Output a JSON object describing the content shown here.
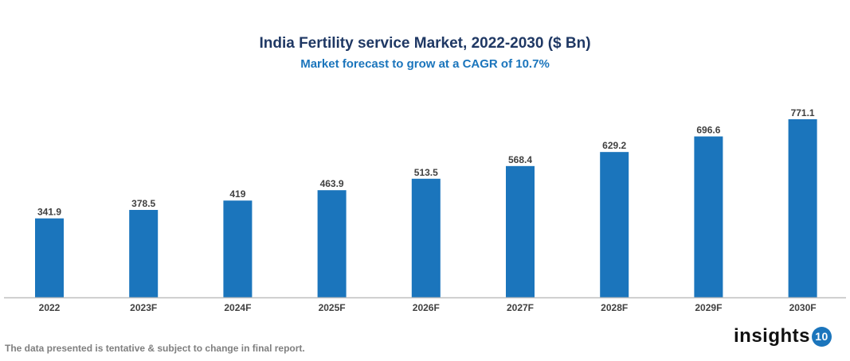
{
  "chart_data": {
    "type": "bar",
    "title": "India Fertility service Market, 2022-2030 ($ Bn)",
    "subtitle": "Market forecast to grow at a CAGR of 10.7%",
    "categories": [
      "2022",
      "2023F",
      "2024F",
      "2025F",
      "2026F",
      "2027F",
      "2028F",
      "2029F",
      "2030F"
    ],
    "values": [
      341.9,
      378.5,
      419,
      463.9,
      513.5,
      568.4,
      629.2,
      696.6,
      771.1
    ],
    "xlabel": "",
    "ylabel": "",
    "ylim": [
      0,
      850
    ],
    "grid": false,
    "bar_color": "#1b75bc",
    "data_labels": true
  },
  "footer": {
    "disclaimer": "The data presented is tentative & subject to change in final report."
  },
  "logo": {
    "text": "insights",
    "number": "10"
  }
}
